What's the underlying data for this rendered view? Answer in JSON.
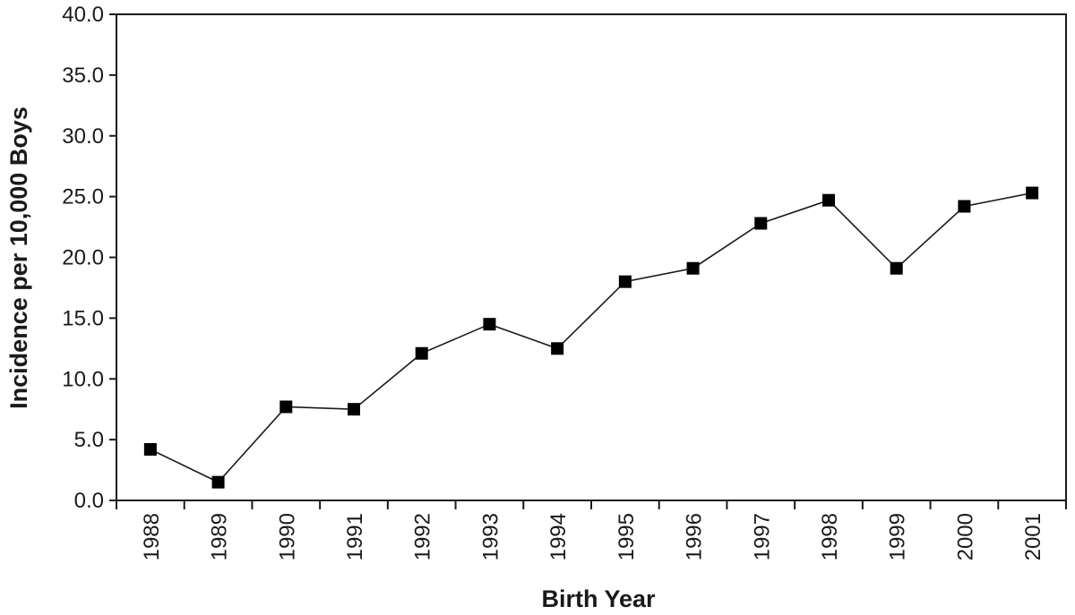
{
  "chart_data": {
    "type": "line",
    "title": "",
    "xlabel": "Birth Year",
    "ylabel": "Incidence per 10,000 Boys",
    "categories": [
      "1988",
      "1989",
      "1990",
      "1991",
      "1992",
      "1993",
      "1994",
      "1995",
      "1996",
      "1997",
      "1998",
      "1999",
      "2000",
      "2001"
    ],
    "series": [
      {
        "values": [
          4.2,
          1.5,
          7.7,
          7.5,
          12.1,
          14.5,
          12.5,
          18.0,
          19.1,
          22.8,
          24.7,
          19.1,
          24.2,
          25.3
        ]
      }
    ],
    "ylim": [
      0,
      40
    ],
    "yticks": [
      "0.0",
      "5.0",
      "10.0",
      "15.0",
      "20.0",
      "25.0",
      "30.0",
      "35.0",
      "40.0"
    ],
    "grid": false,
    "legend": "none",
    "marker": "square",
    "colors": {
      "line": "#1a1a1a",
      "marker": "#000000",
      "axis": "#1a1a1a",
      "frame": "#1a1a1a"
    }
  }
}
